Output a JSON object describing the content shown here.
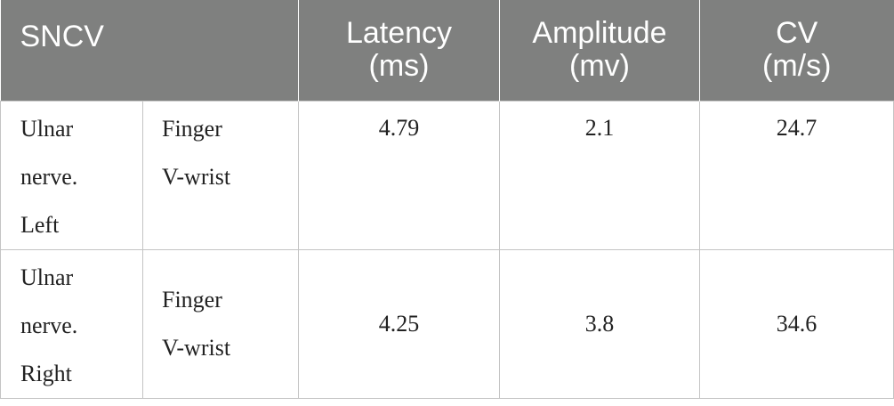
{
  "table": {
    "headers": {
      "sncv": "SNCV",
      "latency": [
        "Latency",
        "(ms)"
      ],
      "amplitude": [
        "Amplitude",
        "(mv)"
      ],
      "cv": [
        "CV",
        "(m/s)"
      ]
    },
    "rows": [
      {
        "nerve": [
          "Ulnar",
          "nerve.",
          "Left"
        ],
        "segment": [
          "Finger",
          "V-wrist"
        ],
        "latency": "4.79",
        "amplitude": "2.1",
        "cv": "24.7"
      },
      {
        "nerve": [
          "Ulnar",
          "nerve.",
          "Right"
        ],
        "segment": [
          "Finger",
          "V-wrist"
        ],
        "latency": "4.25",
        "amplitude": "3.8",
        "cv": "34.6"
      }
    ]
  }
}
